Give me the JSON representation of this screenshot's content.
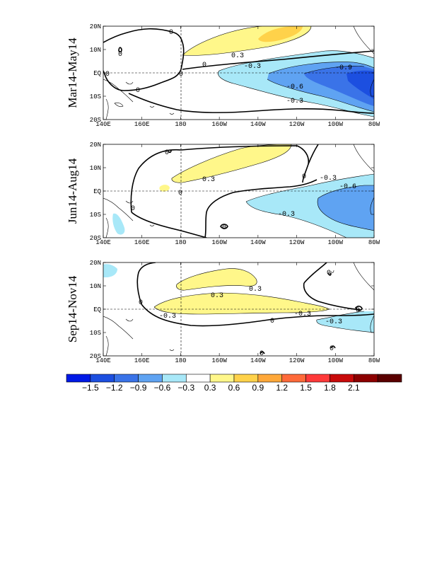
{
  "figure": {
    "panels": [
      {
        "id": "p1",
        "title": "Mar14-May14",
        "contour_labels": [
          "0",
          "0",
          "0",
          "0",
          "0",
          "0",
          "0.3",
          "-0.3",
          "-0.9",
          "-0.6",
          "-0.3"
        ]
      },
      {
        "id": "p2",
        "title": "Jun14-Aug14",
        "contour_labels": [
          "0",
          "0",
          "0",
          "0",
          "0",
          "0.3",
          "-0.3",
          "-0.6",
          "-0.3"
        ]
      },
      {
        "id": "p3",
        "title": "Sep14-Nov14",
        "contour_labels": [
          "0",
          "0",
          "0",
          "0",
          "0",
          "0",
          "0.3",
          "0.3",
          "-0.3",
          "-0.3",
          "-0.3"
        ]
      }
    ],
    "lon_ticks": [
      "140E",
      "160E",
      "180",
      "160W",
      "140W",
      "120W",
      "100W",
      "80W"
    ],
    "lat_ticks": [
      "20N",
      "10N",
      "EQ",
      "10S",
      "20S"
    ],
    "colorbar": {
      "colors": [
        "#0019e6",
        "#1c4fe0",
        "#3a73e8",
        "#5fa3f2",
        "#a8e8f8",
        "#ffffff",
        "#fff78a",
        "#ffd24a",
        "#ffa83a",
        "#ff6a3a",
        "#ff3a3a",
        "#c80a0a",
        "#8c0000",
        "#5a0000"
      ],
      "labels": [
        "-1.5",
        "-1.2",
        "-0.9",
        "-0.6",
        "-0.3",
        "0.3",
        "0.6",
        "0.9",
        "1.2",
        "1.5",
        "1.8",
        "2.1"
      ]
    }
  }
}
